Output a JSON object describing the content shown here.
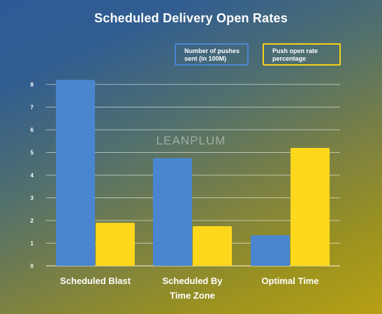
{
  "title": "Scheduled Delivery Open Rates",
  "watermark": "LEANPLUM",
  "legend": [
    {
      "line1": "Number of pushes",
      "line2": "sent (in 100M)",
      "color": "#4a86d0"
    },
    {
      "line1": "Push open rate",
      "line2": "percentage",
      "color": "#f4d21a"
    }
  ],
  "chart_data": {
    "type": "bar",
    "title": "Scheduled Delivery Open Rates",
    "categories": [
      [
        "Scheduled Blast"
      ],
      [
        "Scheduled By",
        "Time Zone"
      ],
      [
        "Optimal Time"
      ]
    ],
    "series": [
      {
        "name": "Number of pushes sent (in 100M)",
        "color": "#4a86d0",
        "values": [
          8.2,
          4.75,
          1.35
        ]
      },
      {
        "name": "Push open rate percentage",
        "color": "#fdd71c",
        "values": [
          1.9,
          1.75,
          5.2
        ]
      }
    ],
    "yticks": [
      0,
      1,
      2,
      3,
      4,
      5,
      6,
      7,
      8
    ],
    "ylim": [
      0,
      8
    ],
    "grid": true,
    "legend_position": "top-right"
  }
}
